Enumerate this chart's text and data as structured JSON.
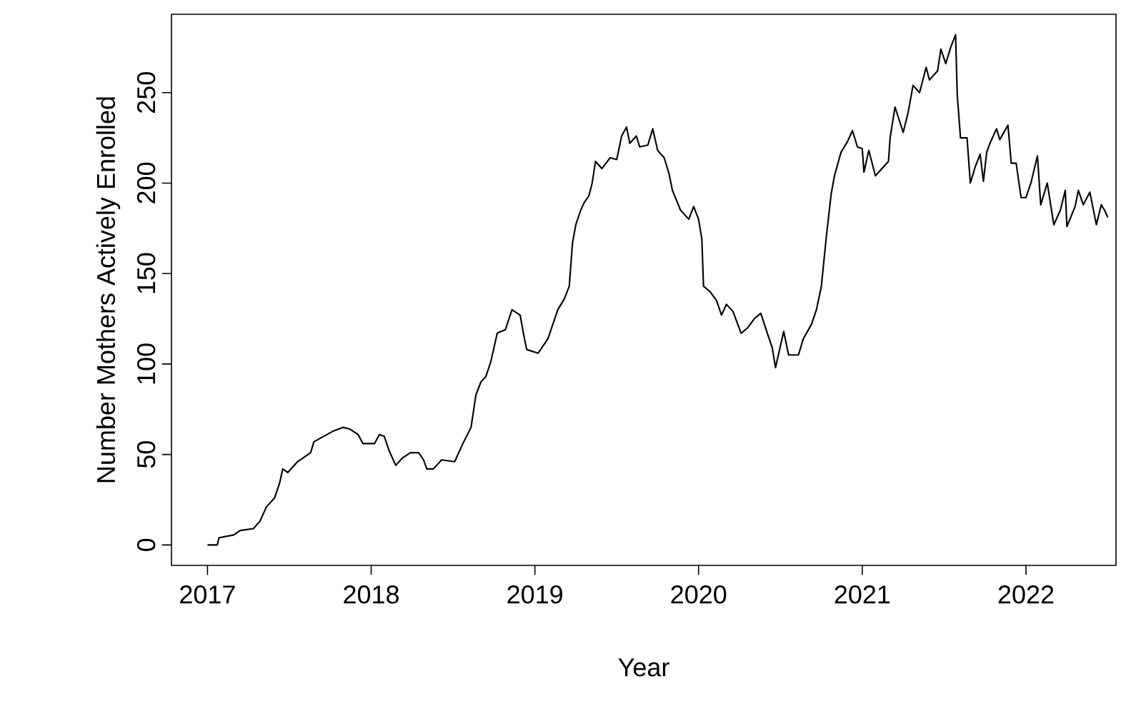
{
  "chart_data": {
    "type": "line",
    "xlabel": "Year",
    "ylabel": "Number Mothers Actively Enrolled",
    "color": "#000000",
    "x": [
      2017.0,
      2017.06,
      2017.07,
      2017.16,
      2017.2,
      2017.28,
      2017.32,
      2017.36,
      2017.41,
      2017.44,
      2017.46,
      2017.49,
      2017.55,
      2017.63,
      2017.65,
      2017.71,
      2017.77,
      2017.83,
      2017.87,
      2017.92,
      2017.95,
      2018.02,
      2018.05,
      2018.08,
      2018.11,
      2018.15,
      2018.19,
      2018.24,
      2018.29,
      2018.32,
      2018.34,
      2018.38,
      2018.43,
      2018.51,
      2018.56,
      2018.61,
      2018.64,
      2018.67,
      2018.7,
      2018.73,
      2018.77,
      2018.82,
      2018.86,
      2018.91,
      2018.93,
      2018.95,
      2019.02,
      2019.08,
      2019.14,
      2019.18,
      2019.21,
      2019.23,
      2019.25,
      2019.28,
      2019.3,
      2019.33,
      2019.35,
      2019.37,
      2019.41,
      2019.46,
      2019.5,
      2019.53,
      2019.56,
      2019.58,
      2019.62,
      2019.64,
      2019.69,
      2019.72,
      2019.75,
      2019.79,
      2019.82,
      2019.84,
      2019.89,
      2019.94,
      2019.97,
      2020.0,
      2020.02,
      2020.03,
      2020.07,
      2020.11,
      2020.14,
      2020.17,
      2020.21,
      2020.26,
      2020.3,
      2020.34,
      2020.38,
      2020.42,
      2020.45,
      2020.47,
      2020.52,
      2020.55,
      2020.61,
      2020.64,
      2020.69,
      2020.72,
      2020.75,
      2020.78,
      2020.81,
      2020.83,
      2020.87,
      2020.91,
      2020.94,
      2020.97,
      2021.0,
      2021.01,
      2021.04,
      2021.08,
      2021.12,
      2021.16,
      2021.17,
      2021.2,
      2021.25,
      2021.28,
      2021.31,
      2021.35,
      2021.39,
      2021.41,
      2021.46,
      2021.48,
      2021.51,
      2021.54,
      2021.57,
      2021.58,
      2021.6,
      2021.64,
      2021.66,
      2021.69,
      2021.72,
      2021.74,
      2021.76,
      2021.78,
      2021.82,
      2021.84,
      2021.89,
      2021.91,
      2021.94,
      2021.97,
      2022.0,
      2022.03,
      2022.07,
      2022.09,
      2022.13,
      2022.17,
      2022.21,
      2022.24,
      2022.25,
      2022.3,
      2022.32,
      2022.35,
      2022.39,
      2022.43,
      2022.46,
      2022.48,
      2022.5
    ],
    "values": [
      0,
      0,
      4,
      5.5,
      8,
      9,
      13,
      21,
      26,
      34,
      42,
      40,
      46,
      51,
      57,
      60,
      63,
      65,
      64,
      61,
      56,
      56,
      61,
      60,
      52,
      44,
      48,
      51,
      51,
      47,
      42,
      42,
      47,
      46,
      56,
      65,
      83,
      90,
      93,
      101,
      117,
      119,
      130,
      127,
      117,
      108,
      106,
      114,
      130,
      136,
      143,
      167,
      177,
      185,
      189,
      193,
      200,
      212,
      208,
      214,
      213,
      226,
      231,
      222,
      226,
      220,
      221,
      230,
      218,
      214,
      205,
      196,
      185,
      180,
      187,
      180,
      169,
      143,
      140,
      135,
      127,
      133,
      129,
      117,
      120,
      125,
      128,
      117,
      109,
      98,
      118,
      105,
      105,
      114,
      122,
      130,
      143,
      170,
      194,
      204,
      217,
      223,
      229,
      220,
      219,
      206,
      218,
      204,
      208,
      212,
      225,
      242,
      228,
      239,
      254,
      250,
      264,
      257,
      262,
      274,
      266,
      275,
      282,
      249,
      225,
      225,
      200,
      209,
      216,
      201,
      217,
      222,
      230,
      224,
      232,
      211,
      211,
      192,
      192,
      200,
      215,
      188,
      200,
      177,
      185,
      196,
      176,
      187,
      196,
      188,
      195,
      177,
      188,
      185,
      181
    ],
    "xlim": [
      2016.78,
      2022.55
    ],
    "ylim": [
      -11.3,
      293.3
    ],
    "xticks": [
      2017,
      2018,
      2019,
      2020,
      2021,
      2022
    ],
    "yticks": [
      0,
      50,
      100,
      150,
      200,
      250
    ]
  }
}
